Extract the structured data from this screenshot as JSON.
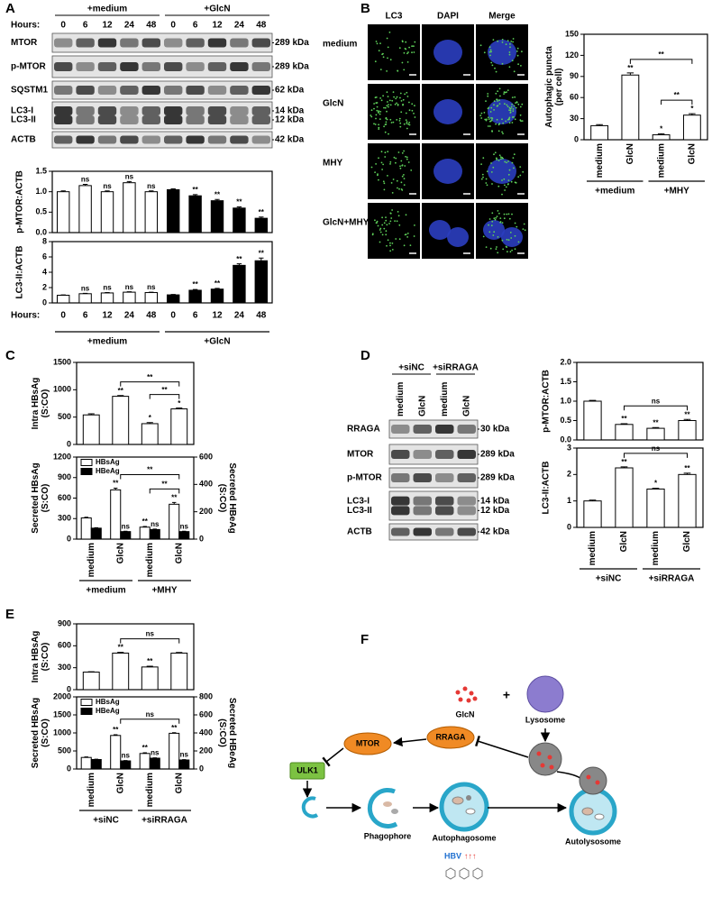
{
  "panel_labels": [
    "A",
    "B",
    "C",
    "D",
    "E",
    "F"
  ],
  "blot_a": {
    "hours_label": "Hours:",
    "groups": [
      "+medium",
      "+GlcN"
    ],
    "lanes": [
      "0",
      "6",
      "12",
      "24",
      "48",
      "0",
      "6",
      "12",
      "24",
      "48"
    ],
    "rows": [
      {
        "labels": [
          "MTOR"
        ],
        "sizes": [
          "289 kDa"
        ]
      },
      {
        "labels": [
          "p-MTOR"
        ],
        "sizes": [
          "289 kDa"
        ]
      },
      {
        "labels": [
          "SQSTM1"
        ],
        "sizes": [
          "62 kDa"
        ]
      },
      {
        "labels": [
          "LC3-I",
          "LC3-II"
        ],
        "sizes": [
          "14 kDa",
          "12 kDa"
        ]
      },
      {
        "labels": [
          "ACTB"
        ],
        "sizes": [
          "42 kDa"
        ]
      }
    ]
  },
  "micro_b": {
    "columns": [
      "LC3",
      "DAPI",
      "Merge"
    ],
    "rows": [
      "medium",
      "GlcN",
      "MHY",
      "GlcN+MHY"
    ]
  },
  "blot_d": {
    "groups": [
      "+siNC",
      "+siRRAGA"
    ],
    "lanes": [
      "medium",
      "GlcN",
      "medium",
      "GlcN"
    ],
    "rows": [
      {
        "labels": [
          "RRAGA"
        ],
        "sizes": [
          "30 kDa"
        ]
      },
      {
        "labels": [
          "MTOR"
        ],
        "sizes": [
          "289 kDa"
        ]
      },
      {
        "labels": [
          "p-MTOR"
        ],
        "sizes": [
          "289 kDa"
        ]
      },
      {
        "labels": [
          "LC3-I",
          "LC3-II"
        ],
        "sizes": [
          "14 kDa",
          "12 kDa"
        ]
      },
      {
        "labels": [
          "ACTB"
        ],
        "sizes": [
          "42 kDa"
        ]
      }
    ]
  },
  "diagram_f": {
    "glcn": "GlcN",
    "plus": "+",
    "lysosome": "Lysosome",
    "rraga": "RRAGA",
    "mtor": "MTOR",
    "ulk1": "ULK1",
    "phagophore": "Phagophore",
    "autophagosome": "Autophagosome",
    "autolysosome": "Autolysosome",
    "hbv": "HBV",
    "hbv_arrows": "↑↑↑"
  },
  "chart_data": [
    {
      "type": "bar",
      "ylabel": [
        "p-MTOR:ACTB"
      ],
      "values": [
        1.0,
        1.15,
        1.0,
        1.22,
        1.0,
        1.05,
        0.9,
        0.78,
        0.6,
        0.35
      ],
      "errors": [
        0.02,
        0.03,
        0.02,
        0.03,
        0.02,
        0.02,
        0.03,
        0.03,
        0.03,
        0.03
      ],
      "colors": [
        "#ffffff",
        "#ffffff",
        "#ffffff",
        "#ffffff",
        "#ffffff",
        "#000000",
        "#000000",
        "#000000",
        "#000000",
        "#000000"
      ],
      "annotations": [
        null,
        "ns",
        "ns",
        "ns",
        "ns",
        null,
        "**",
        "**",
        "**",
        "**"
      ],
      "ylim": [
        0,
        1.5
      ],
      "yticks": [
        {
          "value": 0,
          "label": "0.0"
        },
        0.5,
        {
          "value": 1,
          "label": "1.0"
        },
        1.5
      ]
    },
    {
      "type": "bar",
      "ylabel": [
        "LC3-II:ACTB"
      ],
      "xlabel": "Hours:",
      "categories": [
        "0",
        "6",
        "12",
        "24",
        "48",
        "0",
        "6",
        "12",
        "24",
        "48"
      ],
      "groups": [
        "+medium",
        "+GlcN"
      ],
      "values": [
        1.0,
        1.2,
        1.3,
        1.4,
        1.35,
        1.05,
        1.65,
        1.8,
        4.9,
        5.5
      ],
      "errors": [
        0.05,
        0.05,
        0.05,
        0.05,
        0.05,
        0.05,
        0.1,
        0.1,
        0.2,
        0.35
      ],
      "colors": [
        "#ffffff",
        "#ffffff",
        "#ffffff",
        "#ffffff",
        "#ffffff",
        "#000000",
        "#000000",
        "#000000",
        "#000000",
        "#000000"
      ],
      "annotations": [
        null,
        "ns",
        "ns",
        "ns",
        "ns",
        null,
        "**",
        "**",
        "**",
        "**"
      ],
      "ylim": [
        0,
        8
      ],
      "yticks": [
        0,
        2,
        4,
        6,
        8
      ]
    },
    {
      "type": "bar",
      "ylabel": [
        "Autophagic puncta",
        "(per cell)"
      ],
      "categories": [
        "medium",
        "GlcN",
        "medium",
        "GlcN"
      ],
      "groups": [
        "+medium",
        "+MHY"
      ],
      "values": [
        20,
        92,
        7,
        35
      ],
      "errors": [
        1.5,
        3,
        1.5,
        2
      ],
      "colors": [
        "#ffffff",
        "#ffffff",
        "#ffffff",
        "#ffffff"
      ],
      "annotations": [
        null,
        "**",
        "*",
        "*"
      ],
      "brackets": [
        {
          "from": 1,
          "to": 3,
          "label": "**"
        },
        {
          "from": 2,
          "to": 3,
          "label": "**"
        }
      ],
      "ylim": [
        0,
        150
      ],
      "yticks": [
        0,
        30,
        60,
        90,
        120,
        150
      ]
    },
    {
      "type": "bar",
      "ylabel": [
        "Intra HBsAg",
        "(S:CO)"
      ],
      "values": [
        540,
        880,
        380,
        650
      ],
      "errors": [
        20,
        15,
        20,
        15
      ],
      "colors": [
        "#ffffff",
        "#ffffff",
        "#ffffff",
        "#ffffff"
      ],
      "annotations": [
        null,
        "**",
        "*",
        "*"
      ],
      "brackets": [
        {
          "from": 1,
          "to": 3,
          "label": "**"
        },
        {
          "from": 2,
          "to": 3,
          "label": "**"
        }
      ],
      "ylim": [
        0,
        1500
      ],
      "yticks": [
        0,
        500,
        1000,
        1500
      ]
    },
    {
      "type": "bar",
      "ylabel": [
        "Secreted HBsAg",
        "(S:CO)"
      ],
      "y2label": [
        "Secreted HBeAg",
        "(S:CO)"
      ],
      "categories": [
        "medium",
        "GlcN",
        "medium",
        "GlcN"
      ],
      "groups": [
        "+medium",
        "+MHY"
      ],
      "series": [
        {
          "name": "HBsAg",
          "color": "#ffffff",
          "values": [
            310,
            720,
            175,
            510
          ],
          "errors": [
            10,
            25,
            10,
            25
          ],
          "annotations": [
            null,
            "**",
            "**",
            "**"
          ]
        },
        {
          "name": "HBeAg",
          "color": "#000000",
          "axis": "y2",
          "values": [
            80,
            55,
            70,
            55
          ],
          "errors": [
            3,
            3,
            3,
            3
          ],
          "annotations": [
            null,
            "ns",
            "ns",
            "ns"
          ]
        }
      ],
      "brackets": [
        {
          "from": 1,
          "to": 3,
          "label": "**"
        },
        {
          "from": 2,
          "to": 3,
          "label": "**"
        }
      ],
      "legend": "upper left",
      "ylim": [
        0,
        1200
      ],
      "yticks": [
        0,
        300,
        600,
        900,
        1200
      ],
      "y2lim": [
        0,
        600
      ],
      "y2ticks": [
        0,
        200,
        400,
        600
      ]
    },
    {
      "type": "bar",
      "ylabel": [
        "p-MTOR:ACTB"
      ],
      "values": [
        1.0,
        0.4,
        0.3,
        0.5
      ],
      "errors": [
        0.02,
        0.02,
        0.02,
        0.03
      ],
      "colors": [
        "#ffffff",
        "#ffffff",
        "#ffffff",
        "#ffffff"
      ],
      "annotations": [
        null,
        "**",
        "**",
        "**"
      ],
      "brackets": [
        {
          "from": 1,
          "to": 3,
          "label": "ns"
        }
      ],
      "ylim": [
        0,
        2
      ],
      "yticks": [
        {
          "value": 0,
          "label": "0.0"
        },
        0.5,
        {
          "value": 1,
          "label": "1.0"
        },
        1.5,
        {
          "value": 2,
          "label": "2.0"
        }
      ]
    },
    {
      "type": "bar",
      "ylabel": [
        "LC3-II:ACTB"
      ],
      "categories": [
        "medium",
        "GlcN",
        "medium",
        "GlcN"
      ],
      "groups": [
        "+siNC",
        "+siRRAGA"
      ],
      "values": [
        1.0,
        2.25,
        1.45,
        2.0
      ],
      "errors": [
        0.03,
        0.04,
        0.03,
        0.05
      ],
      "colors": [
        "#ffffff",
        "#ffffff",
        "#ffffff",
        "#ffffff"
      ],
      "annotations": [
        null,
        "**",
        "*",
        "**"
      ],
      "brackets": [
        {
          "from": 1,
          "to": 3,
          "label": "ns"
        }
      ],
      "ylim": [
        0,
        3
      ],
      "yticks": [
        0,
        1,
        2,
        3
      ]
    },
    {
      "type": "bar",
      "ylabel": [
        "Intra HBsAg",
        "(S:CO)"
      ],
      "values": [
        240,
        500,
        310,
        500
      ],
      "errors": [
        5,
        10,
        10,
        8
      ],
      "colors": [
        "#ffffff",
        "#ffffff",
        "#ffffff",
        "#ffffff"
      ],
      "annotations": [
        null,
        "**",
        "**",
        null
      ],
      "brackets": [
        {
          "from": 1,
          "to": 3,
          "label": "ns"
        }
      ],
      "ylim": [
        0,
        900
      ],
      "yticks": [
        0,
        300,
        600,
        900
      ]
    },
    {
      "type": "bar",
      "ylabel": [
        "Secreted HBsAg",
        "(S:CO)"
      ],
      "y2label": [
        "Secreted HBeAg",
        "(S:CO)"
      ],
      "categories": [
        "medium",
        "GlcN",
        "medium",
        "GlcN"
      ],
      "groups": [
        "+siNC",
        "+siRRAGA"
      ],
      "series": [
        {
          "name": "HBsAg",
          "color": "#ffffff",
          "values": [
            320,
            930,
            430,
            990
          ],
          "errors": [
            15,
            20,
            20,
            15
          ],
          "annotations": [
            null,
            "**",
            "**",
            "**"
          ]
        },
        {
          "name": "HBeAg",
          "color": "#000000",
          "axis": "y2",
          "values": [
            105,
            90,
            120,
            100
          ],
          "errors": [
            4,
            4,
            4,
            4
          ],
          "annotations": [
            null,
            "ns",
            "ns",
            "ns"
          ]
        }
      ],
      "brackets": [
        {
          "from": 1,
          "to": 3,
          "label": "ns"
        }
      ],
      "legend": "upper left",
      "ylim": [
        0,
        2000
      ],
      "yticks": [
        0,
        500,
        1000,
        1500,
        2000
      ],
      "y2lim": [
        0,
        800
      ],
      "y2ticks": [
        0,
        200,
        400,
        600,
        800
      ]
    }
  ]
}
